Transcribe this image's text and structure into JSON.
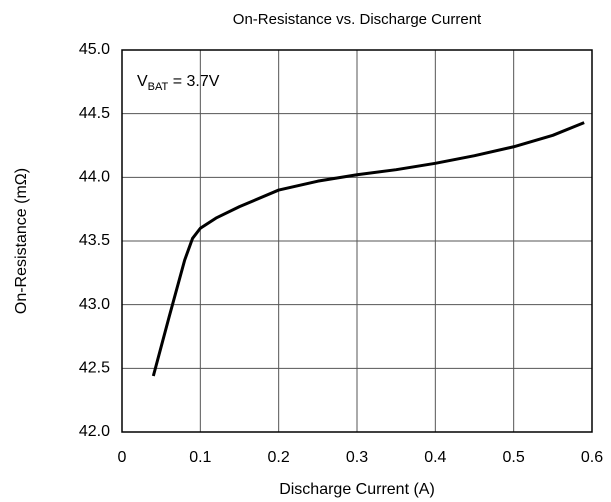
{
  "chart_data": {
    "type": "line",
    "title": "On-Resistance vs. Discharge Current",
    "x_label": "Discharge Current (A)",
    "y_label": "On-Resistance (mΩ)",
    "annotation": {
      "main": "V",
      "sub": "BAT",
      "rest": " = 3.7V"
    },
    "x": [
      0.04,
      0.06,
      0.08,
      0.09,
      0.1,
      0.12,
      0.15,
      0.2,
      0.25,
      0.3,
      0.35,
      0.4,
      0.45,
      0.5,
      0.55,
      0.59
    ],
    "series": [
      {
        "color": "#000000",
        "values": [
          42.44,
          42.9,
          43.35,
          43.52,
          43.6,
          43.68,
          43.77,
          43.9,
          43.97,
          44.02,
          44.06,
          44.11,
          44.17,
          44.24,
          44.33,
          44.43
        ]
      }
    ],
    "xlim": [
      0,
      0.6
    ],
    "xticks": [
      0,
      0.1,
      0.2,
      0.3,
      0.4,
      0.5,
      0.6
    ],
    "ylim": [
      42,
      45
    ],
    "yticks": [
      {
        "value": 42,
        "label": "42.0"
      },
      42.5,
      {
        "value": 43,
        "label": "43.0"
      },
      43.5,
      {
        "value": 44,
        "label": "44.0"
      },
      44.5,
      {
        "value": 45,
        "label": "45.0"
      }
    ],
    "grid": true
  }
}
